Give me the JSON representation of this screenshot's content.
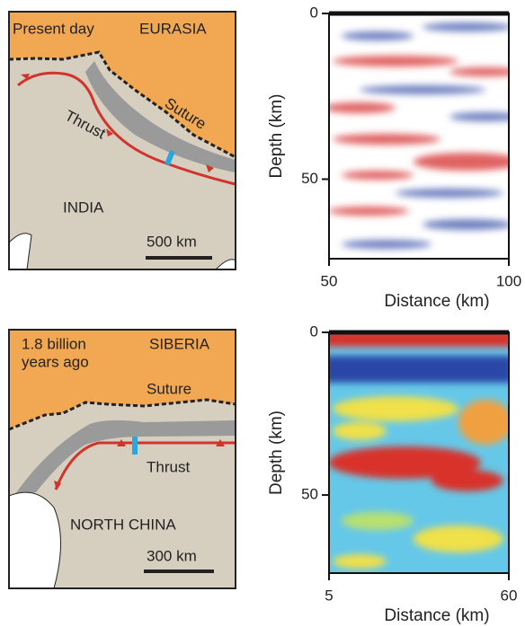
{
  "maps": [
    {
      "era": [
        "Present day"
      ],
      "north": "EURASIA",
      "thrust": "Thrust",
      "suture": "Suture",
      "south": "INDIA",
      "scale": "500 km"
    },
    {
      "era": [
        "1.8 billion",
        "years ago"
      ],
      "north": "SIBERIA",
      "thrust": "Thrust",
      "suture": "Suture",
      "south": "NORTH CHINA",
      "scale": "300 km"
    }
  ],
  "profiles": [
    {
      "ylabel": "Depth (km)",
      "xlabel": "Distance (km)",
      "xlim": [
        50,
        100
      ],
      "ylim": [
        0,
        74
      ],
      "xticks": [
        50,
        100
      ],
      "yticks": [
        0,
        50
      ]
    },
    {
      "ylabel": "Depth (km)",
      "xlabel": "Distance (km)",
      "xlim": [
        5,
        60
      ],
      "ylim": [
        0,
        74
      ],
      "xticks": [
        5,
        60
      ],
      "yticks": [
        0,
        50
      ]
    }
  ]
}
